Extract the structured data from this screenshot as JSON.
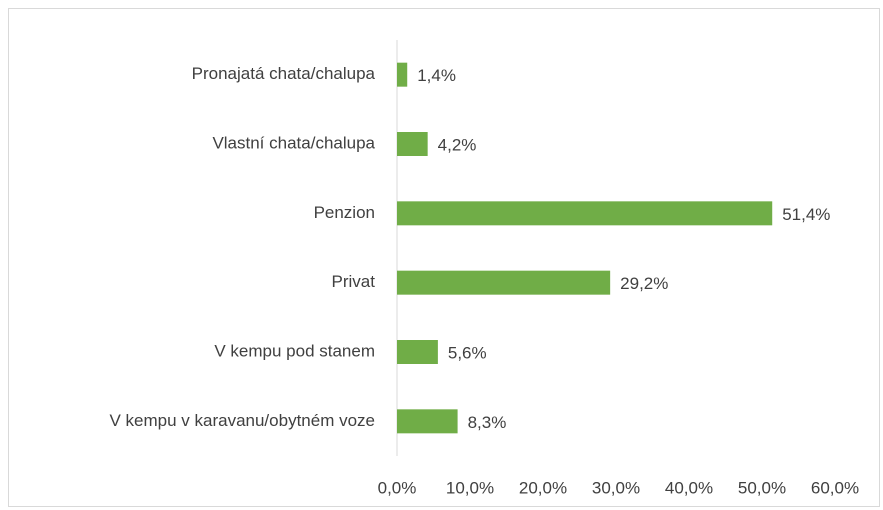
{
  "chart_data": {
    "type": "bar",
    "orientation": "horizontal",
    "categories": [
      "Pronajatá chata/chalupa",
      "Vlastní chata/chalupa",
      "Penzion",
      "Privat",
      "V kempu pod stanem",
      "V kempu v karavanu/obytném voze"
    ],
    "values": [
      1.4,
      4.2,
      51.4,
      29.2,
      5.6,
      8.3
    ],
    "value_labels": [
      "1,4%",
      "4,2%",
      "51,4%",
      "29,2%",
      "5,6%",
      "8,3%"
    ],
    "color": "#70ad47",
    "xlim": [
      0,
      60
    ],
    "xticks": [
      {
        "value": 0,
        "label": "0,0%"
      },
      {
        "value": 10,
        "label": "10,0%"
      },
      {
        "value": 20,
        "label": "20,0%"
      },
      {
        "value": 30,
        "label": "30,0%"
      },
      {
        "value": 40,
        "label": "40,0%"
      },
      {
        "value": 50,
        "label": "50,0%"
      },
      {
        "value": 60,
        "label": "60,0%"
      }
    ],
    "grid": false
  }
}
